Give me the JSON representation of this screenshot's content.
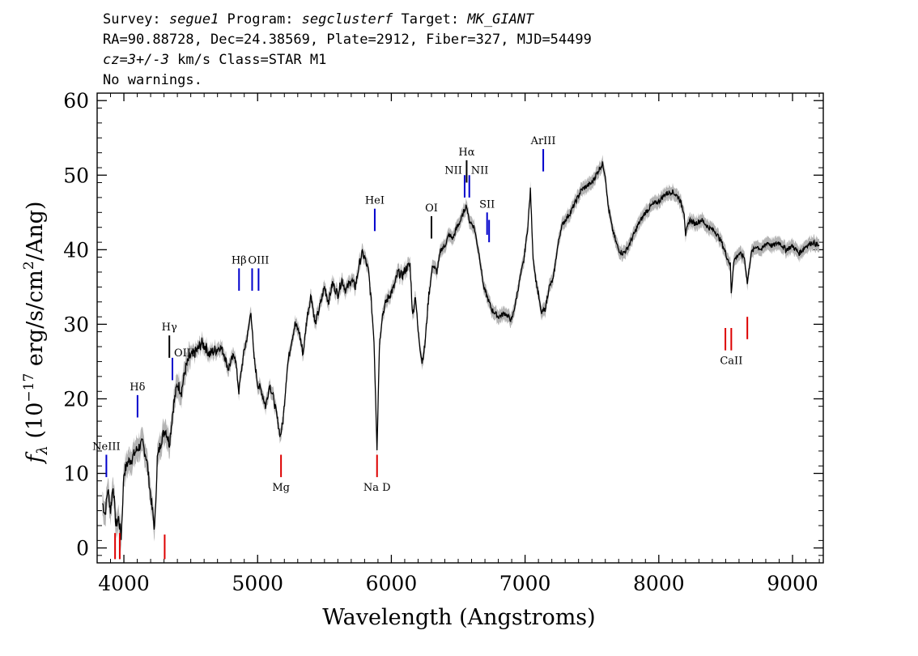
{
  "header": {
    "line1": {
      "survey_label": "Survey: ",
      "survey": "segue1",
      "program_label": " Program: ",
      "program": "segclusterf",
      "target_label": " Target: ",
      "target": "MK_GIANT"
    },
    "line2": "RA=90.88728, Dec=24.38569, Plate=2912, Fiber=327, MJD=54499",
    "line3": {
      "cz": "cz=3+/-3",
      "rest": " km/s Class=STAR M1"
    },
    "line4": "No warnings."
  },
  "chart_data": {
    "type": "line",
    "title": "",
    "xlabel": "Wavelength (Angstroms)",
    "ylabel": "f_λ (10^-17 erg/s/cm^2/Ang)",
    "ylabel_parts": {
      "f": "f",
      "sub": "λ",
      "open": " (10",
      "exp1": "−17",
      "mid": " erg/s/cm",
      "exp2": "2",
      "close": "/Ang)"
    },
    "xlim": [
      3800,
      9230
    ],
    "ylim": [
      -2,
      61
    ],
    "xticks": [
      4000,
      5000,
      6000,
      7000,
      8000,
      9000
    ],
    "yticks": [
      0,
      10,
      20,
      30,
      40,
      50,
      60
    ],
    "colors": {
      "spectrum": "#000000",
      "error_band": "#b4b4b4",
      "emission": "#0000cc",
      "absorption": "#dd0000"
    },
    "series": [
      {
        "values": [
          [
            3840,
            6
          ],
          [
            3860,
            4.5
          ],
          [
            3880,
            8
          ],
          [
            3900,
            5
          ],
          [
            3920,
            8.5
          ],
          [
            3940,
            3
          ],
          [
            3960,
            4
          ],
          [
            3980,
            1.5
          ],
          [
            4000,
            10
          ],
          [
            4030,
            11.5
          ],
          [
            4060,
            12
          ],
          [
            4090,
            13
          ],
          [
            4110,
            13.5
          ],
          [
            4140,
            14
          ],
          [
            4170,
            12
          ],
          [
            4200,
            7
          ],
          [
            4230,
            2.5
          ],
          [
            4250,
            12
          ],
          [
            4280,
            14.5
          ],
          [
            4310,
            16
          ],
          [
            4340,
            14
          ],
          [
            4370,
            19
          ],
          [
            4400,
            22
          ],
          [
            4430,
            21
          ],
          [
            4460,
            24
          ],
          [
            4490,
            25.5
          ],
          [
            4520,
            26
          ],
          [
            4550,
            26.5
          ],
          [
            4580,
            27.5
          ],
          [
            4610,
            27
          ],
          [
            4640,
            26
          ],
          [
            4680,
            26.5
          ],
          [
            4720,
            27
          ],
          [
            4750,
            26
          ],
          [
            4780,
            24
          ],
          [
            4800,
            25
          ],
          [
            4830,
            26
          ],
          [
            4860,
            21
          ],
          [
            4880,
            24
          ],
          [
            4900,
            26.5
          ],
          [
            4930,
            29
          ],
          [
            4950,
            32
          ],
          [
            4970,
            26
          ],
          [
            5000,
            22
          ],
          [
            5030,
            21
          ],
          [
            5060,
            19
          ],
          [
            5090,
            22
          ],
          [
            5120,
            20
          ],
          [
            5150,
            17
          ],
          [
            5170,
            15
          ],
          [
            5190,
            17
          ],
          [
            5220,
            24
          ],
          [
            5250,
            27.5
          ],
          [
            5280,
            30
          ],
          [
            5310,
            29
          ],
          [
            5340,
            26
          ],
          [
            5370,
            31
          ],
          [
            5400,
            34
          ],
          [
            5430,
            30
          ],
          [
            5460,
            32
          ],
          [
            5500,
            35
          ],
          [
            5530,
            33
          ],
          [
            5560,
            35.5
          ],
          [
            5600,
            34
          ],
          [
            5630,
            36
          ],
          [
            5660,
            34.5
          ],
          [
            5700,
            36
          ],
          [
            5730,
            35
          ],
          [
            5760,
            38
          ],
          [
            5780,
            39.5
          ],
          [
            5800,
            39
          ],
          [
            5830,
            37
          ],
          [
            5850,
            33
          ],
          [
            5870,
            28
          ],
          [
            5893,
            13.5
          ],
          [
            5910,
            27
          ],
          [
            5930,
            31
          ],
          [
            5960,
            33
          ],
          [
            5990,
            34
          ],
          [
            6020,
            35
          ],
          [
            6050,
            37
          ],
          [
            6080,
            36.5
          ],
          [
            6110,
            37.5
          ],
          [
            6140,
            38
          ],
          [
            6160,
            31
          ],
          [
            6180,
            34
          ],
          [
            6200,
            29
          ],
          [
            6230,
            25
          ],
          [
            6250,
            27
          ],
          [
            6280,
            34
          ],
          [
            6310,
            38
          ],
          [
            6340,
            37
          ],
          [
            6370,
            40
          ],
          [
            6400,
            40.5
          ],
          [
            6430,
            42
          ],
          [
            6460,
            41.5
          ],
          [
            6490,
            43
          ],
          [
            6520,
            44
          ],
          [
            6550,
            45.5
          ],
          [
            6563,
            46
          ],
          [
            6580,
            44
          ],
          [
            6620,
            43
          ],
          [
            6660,
            39
          ],
          [
            6690,
            35
          ],
          [
            6720,
            33.5
          ],
          [
            6750,
            32
          ],
          [
            6800,
            31
          ],
          [
            6850,
            31.5
          ],
          [
            6900,
            30.5
          ],
          [
            6930,
            33
          ],
          [
            6960,
            36
          ],
          [
            6990,
            38.5
          ],
          [
            7020,
            43
          ],
          [
            7040,
            48
          ],
          [
            7060,
            39
          ],
          [
            7080,
            36
          ],
          [
            7100,
            34
          ],
          [
            7120,
            31.5
          ],
          [
            7150,
            32
          ],
          [
            7180,
            35
          ],
          [
            7210,
            36
          ],
          [
            7240,
            40
          ],
          [
            7270,
            43
          ],
          [
            7300,
            44
          ],
          [
            7340,
            45
          ],
          [
            7380,
            46.5
          ],
          [
            7420,
            48
          ],
          [
            7460,
            48.5
          ],
          [
            7500,
            49
          ],
          [
            7530,
            50
          ],
          [
            7560,
            51
          ],
          [
            7580,
            51.5
          ],
          [
            7600,
            50
          ],
          [
            7620,
            46
          ],
          [
            7650,
            43
          ],
          [
            7680,
            41
          ],
          [
            7700,
            40
          ],
          [
            7730,
            39.5
          ],
          [
            7760,
            40
          ],
          [
            7800,
            41.5
          ],
          [
            7850,
            43.5
          ],
          [
            7900,
            45
          ],
          [
            7950,
            46
          ],
          [
            8000,
            46.5
          ],
          [
            8050,
            47.5
          ],
          [
            8100,
            47.8
          ],
          [
            8150,
            47
          ],
          [
            8190,
            45
          ],
          [
            8200,
            42
          ],
          [
            8230,
            44
          ],
          [
            8270,
            43.5
          ],
          [
            8320,
            44
          ],
          [
            8370,
            43
          ],
          [
            8420,
            42.5
          ],
          [
            8470,
            41
          ],
          [
            8510,
            39
          ],
          [
            8535,
            38
          ],
          [
            8542,
            34
          ],
          [
            8560,
            38.5
          ],
          [
            8600,
            39.5
          ],
          [
            8640,
            39
          ],
          [
            8662,
            35.5
          ],
          [
            8690,
            39.5
          ],
          [
            8730,
            40.5
          ],
          [
            8770,
            40
          ],
          [
            8810,
            41
          ],
          [
            8850,
            40.5
          ],
          [
            8900,
            41
          ],
          [
            8950,
            40
          ],
          [
            9000,
            40.5
          ],
          [
            9050,
            39.5
          ],
          [
            9100,
            40.5
          ],
          [
            9150,
            41
          ],
          [
            9200,
            40.5
          ]
        ]
      }
    ],
    "lines": [
      {
        "label": "NeIII",
        "wave": 3869,
        "y0": 9.5,
        "y1": 12.5,
        "color": "emission",
        "label_pos": "above"
      },
      {
        "label": "Hδ",
        "wave": 4102,
        "y0": 17.5,
        "y1": 20.5,
        "color": "emission",
        "label_pos": "above"
      },
      {
        "label": "Hγ",
        "wave": 4340,
        "y0": 25.5,
        "y1": 28.5,
        "color": "black",
        "label_pos": "above"
      },
      {
        "label": "OIII",
        "wave": 4363,
        "y0": 22.5,
        "y1": 25.5,
        "color": "emission",
        "label_pos": "above-right"
      },
      {
        "label": "Hβ",
        "wave": 4861,
        "y0": 34.5,
        "y1": 37.5,
        "color": "emission",
        "label_pos": "above"
      },
      {
        "label": "",
        "wave": 4959,
        "y0": 34.5,
        "y1": 37.5,
        "color": "emission",
        "label_pos": "none"
      },
      {
        "label": "OIII",
        "wave": 5007,
        "y0": 34.5,
        "y1": 37.5,
        "color": "emission",
        "label_pos": "above"
      },
      {
        "label": "HeI",
        "wave": 5876,
        "y0": 42.5,
        "y1": 45.5,
        "color": "emission",
        "label_pos": "above"
      },
      {
        "label": "OI",
        "wave": 6300,
        "y0": 41.5,
        "y1": 44.5,
        "color": "black",
        "label_pos": "above"
      },
      {
        "label": "NII",
        "wave": 6548,
        "y0": 47,
        "y1": 50,
        "color": "emission",
        "label_pos": "above-left"
      },
      {
        "label": "Hα",
        "wave": 6563,
        "y0": 49,
        "y1": 52,
        "color": "black",
        "label_pos": "above"
      },
      {
        "label": "NII",
        "wave": 6583,
        "y0": 47,
        "y1": 50,
        "color": "emission",
        "label_pos": "above-right"
      },
      {
        "label": "SII",
        "wave": 6716,
        "y0": 42,
        "y1": 45,
        "color": "emission",
        "label_pos": "above"
      },
      {
        "label": "",
        "wave": 6731,
        "y0": 41,
        "y1": 44,
        "color": "emission",
        "label_pos": "none"
      },
      {
        "label": "ArIII",
        "wave": 7136,
        "y0": 50.5,
        "y1": 53.5,
        "color": "emission",
        "label_pos": "above"
      },
      {
        "label": "",
        "wave": 3934,
        "y0": -1.5,
        "y1": 2,
        "color": "absorption",
        "label_pos": "none"
      },
      {
        "label": "",
        "wave": 3969,
        "y0": -1.5,
        "y1": 2,
        "color": "absorption",
        "label_pos": "none"
      },
      {
        "label": "",
        "wave": 4305,
        "y0": -1.5,
        "y1": 1.8,
        "color": "absorption",
        "label_pos": "none"
      },
      {
        "label": "Mg",
        "wave": 5175,
        "y0": 9.5,
        "y1": 12.5,
        "color": "absorption",
        "label_pos": "below"
      },
      {
        "label": "Na D",
        "wave": 5893,
        "y0": 9.5,
        "y1": 12.5,
        "color": "absorption",
        "label_pos": "below"
      },
      {
        "label": "",
        "wave": 8498,
        "y0": 26.5,
        "y1": 29.5,
        "color": "absorption",
        "label_pos": "none"
      },
      {
        "label": "CaII",
        "wave": 8542,
        "y0": 26.5,
        "y1": 29.5,
        "color": "absorption",
        "label_pos": "below"
      },
      {
        "label": "",
        "wave": 8662,
        "y0": 28,
        "y1": 31,
        "color": "absorption",
        "label_pos": "none"
      }
    ]
  }
}
